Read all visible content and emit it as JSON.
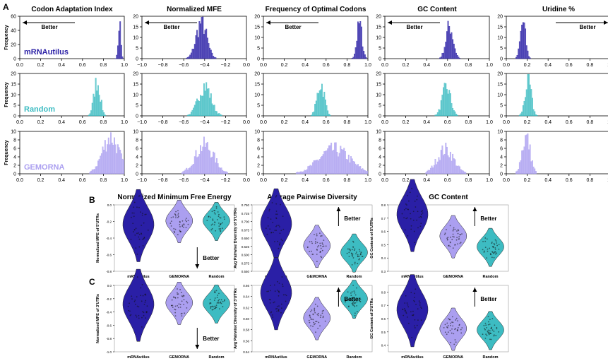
{
  "panel_labels": [
    "A",
    "B",
    "C"
  ],
  "colors": {
    "mRNAutilus": "#2a1fa6",
    "Random": "#3dbcc2",
    "GEMORNA": "#ab9ff0",
    "axis": "#000000"
  },
  "better_label": "Better",
  "chart_data": [
    {
      "type": "histogram-grid",
      "panel": "A",
      "ylabel": "Frequency",
      "columns": [
        {
          "title": "Codon Adaptation Index",
          "xlim": [
            0.0,
            1.0
          ],
          "xticks": [
            "0.0",
            "0.2",
            "0.4",
            "0.6",
            "0.8",
            "1.0"
          ],
          "better": "left"
        },
        {
          "title": "Normalized MFE",
          "xlim": [
            -1.0,
            0.0
          ],
          "xticks": [
            "−1.0",
            "−0.8",
            "−0.6",
            "−0.4",
            "−0.2",
            "0.0"
          ],
          "better": "left"
        },
        {
          "title": "Frequency of Optimal Codons",
          "xlim": [
            0.0,
            1.0
          ],
          "xticks": [
            "0.0",
            "0.2",
            "0.4",
            "0.6",
            "0.8",
            "1.0"
          ],
          "better": "left"
        },
        {
          "title": "GC Content",
          "xlim": [
            0.0,
            1.0
          ],
          "xticks": [
            "0.0",
            "0.2",
            "0.4",
            "0.6",
            "0.8",
            "1.0"
          ],
          "better": "left"
        },
        {
          "title": "Uridine %",
          "xlim": [
            0.0,
            1.0
          ],
          "xticks": [
            "0.0",
            "0.2",
            "0.4",
            "0.6",
            "0.8",
            "1.0"
          ],
          "better": "right"
        }
      ],
      "rows": [
        {
          "series": "mRNAutilus",
          "col0_yticks": [
            "0",
            "20",
            "40",
            "60"
          ],
          "other_yticks": [
            "0",
            "5",
            "10",
            "15",
            "20"
          ],
          "distributions": [
            {
              "mean": 0.955,
              "sd": 0.012,
              "peak": 55,
              "ymax": 60
            },
            {
              "mean": -0.43,
              "sd": 0.05,
              "peak": 18,
              "ymax": 20
            },
            {
              "mean": 0.92,
              "sd": 0.025,
              "peak": 17,
              "ymax": 20
            },
            {
              "mean": 0.62,
              "sd": 0.035,
              "peak": 16,
              "ymax": 20
            },
            {
              "mean": 0.16,
              "sd": 0.025,
              "peak": 18,
              "ymax": 20
            }
          ]
        },
        {
          "series": "Random",
          "col0_yticks": [
            "0",
            "5",
            "10",
            "15",
            "20"
          ],
          "other_yticks": [
            "0",
            "5",
            "10",
            "15",
            "20"
          ],
          "distributions": [
            {
              "mean": 0.74,
              "sd": 0.03,
              "peak": 17,
              "ymax": 20
            },
            {
              "mean": -0.4,
              "sd": 0.06,
              "peak": 15,
              "ymax": 20
            },
            {
              "mean": 0.55,
              "sd": 0.035,
              "peak": 16,
              "ymax": 20
            },
            {
              "mean": 0.59,
              "sd": 0.04,
              "peak": 14,
              "ymax": 20
            },
            {
              "mean": 0.21,
              "sd": 0.03,
              "peak": 17,
              "ymax": 20
            }
          ]
        },
        {
          "series": "GEMORNA",
          "col0_yticks": [
            "0",
            "2",
            "4",
            "6",
            "8",
            "10"
          ],
          "other_yticks": [
            "0",
            "2",
            "4",
            "6",
            "8",
            "10"
          ],
          "distributions": [
            {
              "mean": 0.87,
              "sd": 0.08,
              "peak": 9,
              "ymax": 10
            },
            {
              "mean": -0.4,
              "sd": 0.09,
              "peak": 7,
              "ymax": 10
            },
            {
              "mean": 0.68,
              "sd": 0.15,
              "peak": 6,
              "ymax": 10
            },
            {
              "mean": 0.58,
              "sd": 0.08,
              "peak": 6,
              "ymax": 10
            },
            {
              "mean": 0.19,
              "sd": 0.04,
              "peak": 9,
              "ymax": 10
            }
          ]
        }
      ]
    },
    {
      "type": "violin-grid",
      "panels": [
        {
          "label": "B",
          "plots": [
            {
              "title": "Normalized Minimum Free Energy",
              "ylabel": "Normalized MFE of 5'UTRs",
              "yticks": [
                "-0.8",
                "-0.6",
                "-0.4",
                "-0.2",
                "0.0"
              ],
              "ylim": [
                -0.8,
                0.0
              ],
              "better": "down",
              "categories": [
                "mRNAutilus",
                "GEMORNA",
                "Random"
              ],
              "medians": [
                -0.25,
                -0.2,
                -0.2
              ]
            },
            {
              "title": "Average Pairwise Diversity",
              "ylabel": "Avg Pairwise Diversity of 5'UTRs",
              "yticks": [
                "0.550",
                "0.575",
                "0.600",
                "0.625",
                "0.650",
                "0.675",
                "0.700",
                "0.725",
                "0.750"
              ],
              "ylim": [
                0.55,
                0.75
              ],
              "better": "up",
              "categories": [
                "mRNAutilus",
                "GEMORNA",
                "Random"
              ],
              "medians": [
                0.69,
                0.625,
                0.605
              ]
            },
            {
              "title": "GC Content",
              "ylabel": "GC Content of 5'UTRs",
              "yticks": [
                "0.3",
                "0.4",
                "0.5",
                "0.6",
                "0.7",
                "0.8"
              ],
              "ylim": [
                0.3,
                0.8
              ],
              "better": "up",
              "categories": [
                "mRNAutilus",
                "GEMORNA",
                "Random"
              ],
              "medians": [
                0.72,
                0.56,
                0.48
              ]
            }
          ]
        },
        {
          "label": "C",
          "plots": [
            {
              "title": "",
              "ylabel": "Normalized MFE of 3'UTRs",
              "yticks": [
                "-1.0",
                "-0.8",
                "-0.6",
                "-0.4",
                "-0.2",
                "0.0"
              ],
              "ylim": [
                -1.0,
                0.0
              ],
              "better": "down",
              "categories": [
                "mRNAutilus",
                "GEMORNA",
                "Random"
              ],
              "medians": [
                -0.3,
                -0.27,
                -0.28
              ]
            },
            {
              "title": "",
              "ylabel": "Avg Pairwise Diversity of 3'UTRs",
              "yticks": [
                "0.54",
                "0.56",
                "0.58",
                "0.60",
                "0.62",
                "0.64",
                "0.66"
              ],
              "ylim": [
                0.54,
                0.66
              ],
              "better": "up",
              "categories": [
                "mRNAutilus",
                "GEMORNA",
                "Random"
              ],
              "medians": [
                0.645,
                0.6,
                0.635
              ]
            },
            {
              "title": "",
              "ylabel": "GC Content of 3'UTRs",
              "yticks": [
                "0.4",
                "0.5",
                "0.6",
                "0.7",
                "0.8"
              ],
              "ylim": [
                0.35,
                0.85
              ],
              "better": "up",
              "categories": [
                "mRNAutilus",
                "GEMORNA",
                "Random"
              ],
              "medians": [
                0.66,
                0.52,
                0.51
              ]
            }
          ]
        }
      ]
    }
  ]
}
